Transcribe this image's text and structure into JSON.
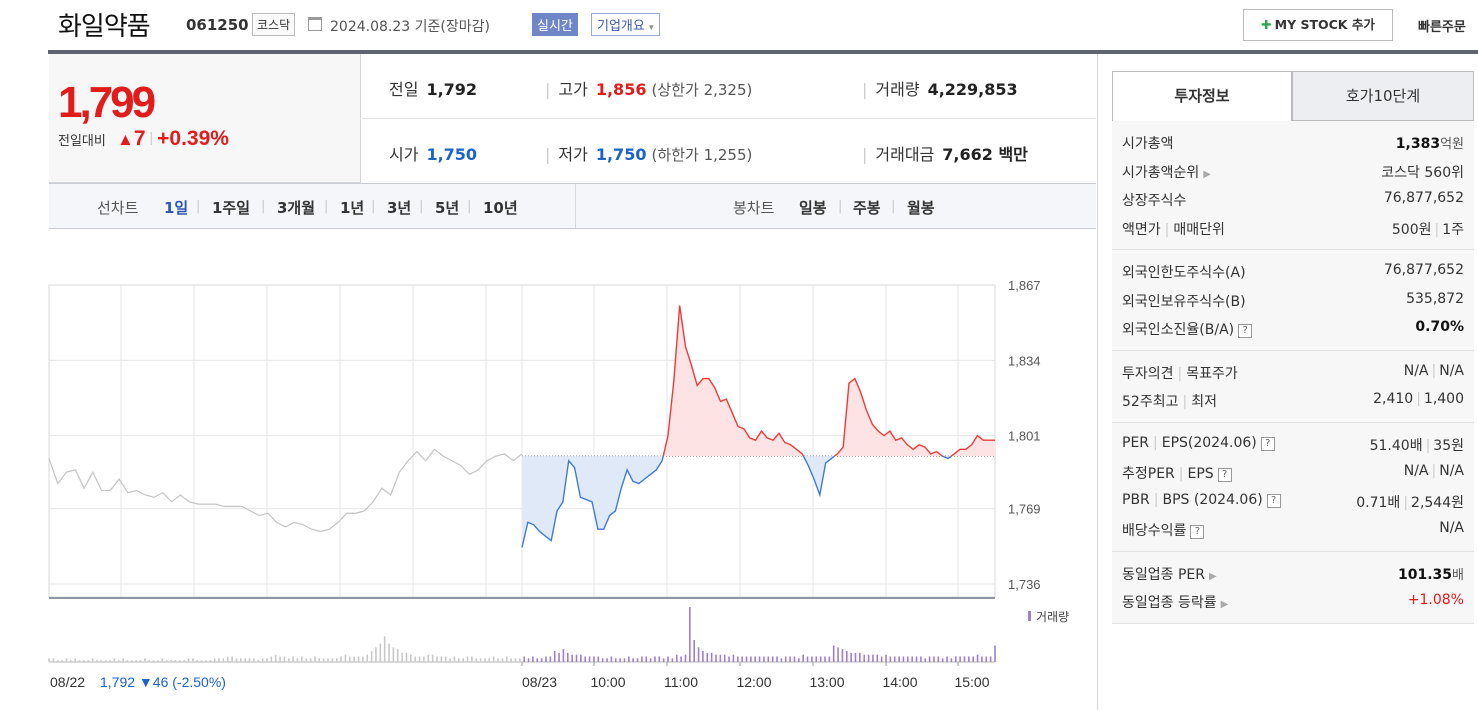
{
  "header": {
    "name": "화일약품",
    "code": "061250",
    "market": "코스닥",
    "date": "2024.08.23 기준(장마감)",
    "realtime_label": "실시간",
    "overview_label": "기업개요",
    "mystock_label": "MY STOCK 추가",
    "quick_order_label": "빠른주문"
  },
  "price": {
    "current": "1,799",
    "compare_label": "전일대비",
    "change": "7",
    "change_pct": "+0.39%"
  },
  "stats": {
    "prev_label": "전일",
    "prev": "1,792",
    "high_label": "고가",
    "high": "1,856",
    "upper_limit": "(상한가 2,325)",
    "volume_label": "거래량",
    "volume": "4,229,853",
    "open_label": "시가",
    "open": "1,750",
    "low_label": "저가",
    "low": "1,750",
    "lower_limit": "(하한가 1,255)",
    "amount_label": "거래대금",
    "amount": "7,662 백만"
  },
  "tabs": {
    "line_label": "선차트",
    "line_items": [
      "1일",
      "1주일",
      "3개월",
      "1년",
      "3년",
      "5년",
      "10년"
    ],
    "active": "1일",
    "candle_label": "봉차트",
    "candle_items": [
      "일봉",
      "주봉",
      "월봉"
    ]
  },
  "chart_data": {
    "type": "line",
    "title": "",
    "y_ticks": [
      "1,867",
      "1,834",
      "1,801",
      "1,769",
      "1,736"
    ],
    "ylim": [
      1736,
      1867
    ],
    "baseline": 1792,
    "x_ticks": [
      "08/23",
      "10:00",
      "11:00",
      "12:00",
      "13:00",
      "14:00",
      "15:00"
    ],
    "prev_day_label": "08/22",
    "prev_day_info": "1,792 ▼46 (-2.50%)",
    "volume_legend": "거래량",
    "colors": {
      "up": "#f03a3a",
      "down": "#3f7ad8",
      "prev": "#c4c4c4",
      "volume": "#9b7fd0"
    },
    "prev_day_series": [
      1791,
      1780,
      1785,
      1786,
      1778,
      1785,
      1777,
      1777,
      1782,
      1776,
      1777,
      1775,
      1774,
      1776,
      1772,
      1775,
      1772,
      1771,
      1771,
      1771,
      1770,
      1770,
      1770,
      1768,
      1766,
      1767,
      1763,
      1761,
      1763,
      1762,
      1760,
      1759,
      1760,
      1763,
      1767,
      1767,
      1768,
      1772,
      1778,
      1775,
      1785,
      1790,
      1794,
      1790,
      1795,
      1792,
      1790,
      1788,
      1784,
      1786,
      1790,
      1792,
      1793,
      1790,
      1793
    ],
    "today_series": [
      1752,
      1763,
      1762,
      1759,
      1757,
      1755,
      1768,
      1772,
      1790,
      1787,
      1774,
      1773,
      1772,
      1760,
      1760,
      1766,
      1768,
      1778,
      1786,
      1781,
      1780,
      1782,
      1784,
      1786,
      1790,
      1801,
      1825,
      1858,
      1840,
      1832,
      1823,
      1826,
      1826,
      1822,
      1816,
      1817,
      1811,
      1805,
      1804,
      1800,
      1799,
      1803,
      1800,
      1799,
      1802,
      1798,
      1797,
      1795,
      1793,
      1788,
      1782,
      1775,
      1789,
      1791,
      1793,
      1796,
      1824,
      1826,
      1820,
      1812,
      1806,
      1803,
      1801,
      1803,
      1799,
      1800,
      1797,
      1795,
      1797,
      1796,
      1793,
      1794,
      1792,
      1791,
      1793,
      1795,
      1795,
      1797,
      1801,
      1799,
      1799,
      1799
    ],
    "volume_series": [
      2,
      2,
      1,
      1,
      2,
      1,
      2,
      1,
      1,
      1,
      2,
      1,
      1,
      1,
      1,
      2,
      1,
      2,
      1,
      1,
      1,
      1,
      2,
      1,
      1,
      1,
      2,
      1,
      1,
      1,
      1,
      1,
      2,
      2,
      1,
      1,
      1,
      1,
      2,
      2,
      2,
      3,
      3,
      2,
      2,
      2,
      2,
      2,
      1,
      2,
      2,
      3,
      4,
      3,
      3,
      2,
      3,
      2,
      3,
      2,
      2,
      3,
      2,
      2,
      2,
      2,
      2,
      3,
      4,
      3,
      3,
      3,
      3,
      4,
      6,
      8,
      10,
      14,
      10,
      8,
      7,
      5,
      5,
      4,
      3,
      3,
      3,
      4,
      4,
      3,
      3,
      3,
      2,
      3,
      2,
      2,
      3,
      3,
      2,
      2,
      2,
      2,
      3,
      2,
      2,
      3,
      2,
      2,
      2,
      3,
      2,
      3,
      2,
      2,
      3,
      3,
      6,
      5,
      7,
      5,
      4,
      4,
      4,
      3,
      3,
      3,
      3,
      2,
      2,
      3,
      2,
      2,
      2,
      3,
      2,
      2,
      3,
      3,
      2,
      3,
      3,
      2,
      3,
      2,
      4,
      3,
      4,
      30,
      12,
      8,
      6,
      5,
      5,
      4,
      4,
      4,
      3,
      4,
      3,
      3,
      3,
      3,
      3,
      3,
      3,
      3,
      3,
      3,
      2,
      3,
      3,
      3,
      2,
      4,
      3,
      3,
      3,
      3,
      3,
      3,
      9,
      8,
      7,
      6,
      5,
      5,
      5,
      4,
      4,
      4,
      4,
      3,
      4,
      3,
      3,
      3,
      3,
      3,
      3,
      3,
      3,
      2,
      3,
      3,
      3,
      2,
      3,
      2,
      3,
      3,
      3,
      3,
      3,
      4,
      3,
      3,
      3,
      9
    ]
  },
  "side": {
    "tab_active": "투자정보",
    "tab_other": "호가10단계",
    "groups": [
      {
        "rows": [
          {
            "k": "시가총액",
            "v": "1,383",
            "unit": "억원",
            "bold": true
          },
          {
            "k": "시가총액순위",
            "arrow": true,
            "v": "코스닥 560위"
          },
          {
            "k": "상장주식수",
            "v": "76,877,652"
          },
          {
            "k": "액면가",
            "k2": "매매단위",
            "v": "500원",
            "v2": "1주"
          }
        ]
      },
      {
        "rows": [
          {
            "k": "외국인한도주식수(A)",
            "v": "76,877,652"
          },
          {
            "k": "외국인보유주식수(B)",
            "v": "535,872"
          },
          {
            "k": "외국인소진율(B/A)",
            "q": true,
            "v": "0.70%",
            "bold": true
          }
        ]
      },
      {
        "rows": [
          {
            "k": "투자의견",
            "k2": "목표주가",
            "v": "N/A",
            "v2": "N/A"
          },
          {
            "k": "52주최고",
            "k2": "최저",
            "v": "2,410",
            "v2": "1,400"
          }
        ]
      },
      {
        "rows": [
          {
            "k": "PER",
            "k2": "EPS(2024.06)",
            "q": true,
            "v": "51.40배",
            "v2": "35원"
          },
          {
            "k": "추정PER",
            "k2": "EPS",
            "q": true,
            "v": "N/A",
            "v2": "N/A"
          },
          {
            "k": "PBR",
            "k2": "BPS (2024.06)",
            "q": true,
            "v": "0.71배",
            "v2": "2,544원"
          },
          {
            "k": "배당수익률",
            "q": true,
            "v": "N/A"
          }
        ]
      },
      {
        "rows": [
          {
            "k": "동일업종 PER",
            "arrow": true,
            "v": "101.35",
            "unit": "배",
            "bold": true
          },
          {
            "k": "동일업종 등락률",
            "arrow": true,
            "v": "+1.08%",
            "up": true
          }
        ]
      }
    ]
  }
}
